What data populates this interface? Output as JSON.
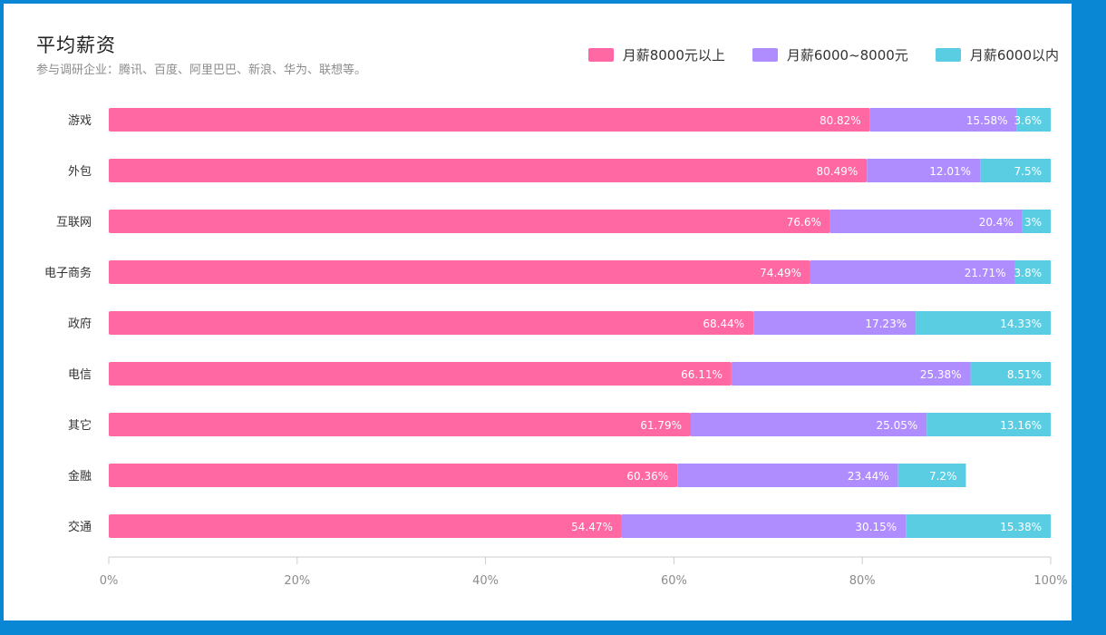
{
  "title": "平均薪资",
  "subtitle": "参与调研企业：腾讯、百度、阿里巴巴、新浪、华为、联想等。",
  "colors": {
    "series_1": "#ff68a3",
    "series_2": "#b08dff",
    "series_3": "#5bcde3",
    "axis": "#cccccc",
    "frame": "#0a87d4"
  },
  "chart_data": {
    "type": "bar",
    "orientation": "horizontal",
    "stacked": true,
    "title": "平均薪资",
    "subtitle": "参与调研企业：腾讯、百度、阿里巴巴、新浪、华为、联想等。",
    "categories": [
      "游戏",
      "外包",
      "互联网",
      "电子商务",
      "政府",
      "电信",
      "其它",
      "金融",
      "交通"
    ],
    "series": [
      {
        "name": "月薪8000元以上",
        "values": [
          80.82,
          80.49,
          76.6,
          74.49,
          68.44,
          66.11,
          61.79,
          60.36,
          54.47
        ],
        "labels": [
          "80.82%",
          "80.49%",
          "76.6%",
          "74.49%",
          "68.44%",
          "66.11%",
          "61.79%",
          "60.36%",
          "54.47%"
        ]
      },
      {
        "name": "月薪6000~8000元",
        "values": [
          15.58,
          12.01,
          20.4,
          21.71,
          17.23,
          25.38,
          25.05,
          23.44,
          30.15
        ],
        "labels": [
          "15.58%",
          "12.01%",
          "20.4%",
          "21.71%",
          "17.23%",
          "25.38%",
          "25.05%",
          "23.44%",
          "30.15%"
        ]
      },
      {
        "name": "月薪6000以内",
        "values": [
          3.6,
          7.5,
          3,
          3.8,
          14.33,
          8.51,
          13.16,
          7.2,
          15.38
        ],
        "labels": [
          "3.6%",
          "7.5%",
          "3%",
          "3.8%",
          "14.33%",
          "8.51%",
          "13.16%",
          "7.2%",
          "15.38%"
        ]
      }
    ],
    "xlim": [
      0,
      100
    ],
    "xticks": [
      "0%",
      "20%",
      "40%",
      "60%",
      "80%",
      "100%"
    ],
    "legend": "top-right",
    "grid": false
  }
}
